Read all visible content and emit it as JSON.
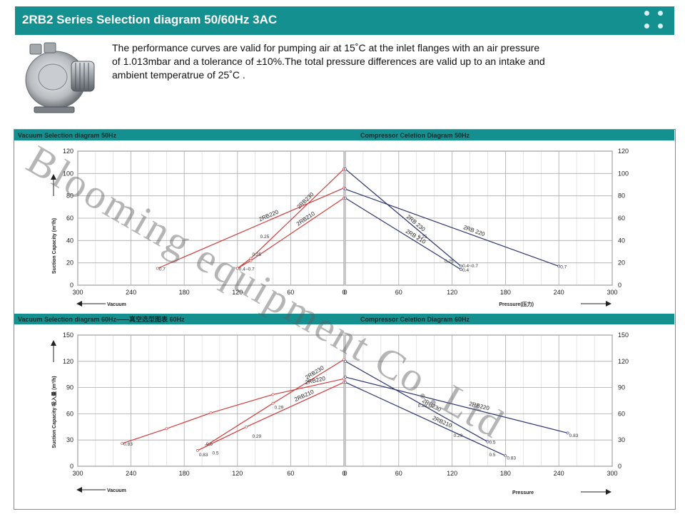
{
  "header": {
    "title": "2RB2 Series Selection diagram 50/60Hz 3AC"
  },
  "intro": {
    "line1": "The performance curves are valid for pumping air at 15˚C at the inlet flanges with an air pressure",
    "line2": "of 1.013mbar and a tolerance of ±10%.The total pressure differences are valid up to an intake and",
    "line3": "ambient temperatrue of 25˚C ."
  },
  "watermark": "Blooming equipment Co.,Ltd",
  "colors": {
    "teal": "#159090",
    "red": "#d23c3c",
    "navy": "#2c3470"
  },
  "chart_data": [
    {
      "type": "line",
      "title": "Vacuum Selection diagram 50Hz",
      "xlabel": "Vacuum",
      "ylabel": "Suction Capacity  (m³/h)",
      "xlim": [
        300,
        0
      ],
      "ylim": [
        0,
        120
      ],
      "xticks": [
        300,
        240,
        180,
        120,
        60,
        0
      ],
      "yticks": [
        0,
        20,
        40,
        60,
        80,
        100,
        120
      ],
      "series": [
        {
          "name": "2RB230",
          "x": [
            120,
            105,
            0
          ],
          "y": [
            15,
            24,
            104
          ]
        },
        {
          "name": "2RB220",
          "x": [
            210,
            0
          ],
          "y": [
            15,
            87
          ]
        },
        {
          "name": "2RB210",
          "x": [
            120,
            105,
            0
          ],
          "y": [
            15,
            22,
            78
          ]
        }
      ],
      "annotations": [
        {
          "text": "0.7",
          "x": 210,
          "y": 15
        },
        {
          "text": "0.4~0.7",
          "x": 120,
          "y": 15
        },
        {
          "text": "0.25",
          "x": 105,
          "y": 28
        },
        {
          "text": "0.25",
          "x": 96,
          "y": 44
        }
      ]
    },
    {
      "type": "line",
      "title": "Compressor Celetion Diagram 50Hz",
      "xlabel": "Pressure(压力)",
      "ylabel": "",
      "xlim": [
        0,
        300
      ],
      "ylim": [
        0,
        120
      ],
      "xticks": [
        0,
        60,
        120,
        180,
        240,
        300
      ],
      "yticks": [
        0,
        20,
        40,
        60,
        80,
        100,
        120
      ],
      "series": [
        {
          "name": "2RB 230",
          "x": [
            0,
            130
          ],
          "y": [
            104,
            17
          ]
        },
        {
          "name": "2RB 210",
          "x": [
            0,
            130
          ],
          "y": [
            78,
            14
          ]
        },
        {
          "name": "2RB 220",
          "x": [
            0,
            240
          ],
          "y": [
            86,
            17
          ]
        }
      ],
      "annotations": [
        {
          "text": "0.25",
          "x": 80,
          "y": 44
        },
        {
          "text": "0.25",
          "x": 110,
          "y": 22
        },
        {
          "text": "0.4~0.7",
          "x": 130,
          "y": 18
        },
        {
          "text": "0.4",
          "x": 130,
          "y": 14
        },
        {
          "text": "0.7",
          "x": 240,
          "y": 17
        }
      ]
    },
    {
      "type": "line",
      "title": "Vacuum Selection diagram 60Hz——真空选型图表 60Hz",
      "xlabel": "Vacuum",
      "ylabel": "Suction Capacity 吸入量  (m³/h)",
      "xlim": [
        300,
        0
      ],
      "ylim": [
        0,
        150
      ],
      "xticks": [
        300,
        240,
        180,
        120,
        60,
        0
      ],
      "yticks": [
        0,
        30,
        60,
        90,
        120,
        150
      ],
      "series": [
        {
          "name": "2RB230",
          "x": [
            155,
            80,
            0
          ],
          "y": [
            24,
            72,
            122
          ]
        },
        {
          "name": "2RB220",
          "x": [
            250,
            200,
            150,
            80,
            0
          ],
          "y": [
            26,
            43,
            61,
            82,
            100
          ]
        },
        {
          "name": "2RB210",
          "x": [
            165,
            110,
            0
          ],
          "y": [
            18,
            45,
            96
          ]
        }
      ],
      "annotations": [
        {
          "text": "0.83",
          "x": 250,
          "y": 26
        },
        {
          "text": "0.83",
          "x": 165,
          "y": 14
        },
        {
          "text": "0.5",
          "x": 157,
          "y": 26
        },
        {
          "text": "0.5",
          "x": 150,
          "y": 16
        },
        {
          "text": "0.29",
          "x": 105,
          "y": 35
        },
        {
          "text": "0.29",
          "x": 80,
          "y": 68
        }
      ]
    },
    {
      "type": "line",
      "title": "Compressor Celetion Diagram 60Hz",
      "xlabel": "Pressure",
      "ylabel": "",
      "xlim": [
        0,
        300
      ],
      "ylim": [
        0,
        150
      ],
      "xticks": [
        0,
        60,
        120,
        180,
        240,
        300
      ],
      "yticks": [
        0,
        30,
        60,
        90,
        120,
        150
      ],
      "series": [
        {
          "name": "2RB230",
          "x": [
            0,
            160
          ],
          "y": [
            120,
            28
          ]
        },
        {
          "name": "2RB220",
          "x": [
            0,
            250
          ],
          "y": [
            102,
            38
          ]
        },
        {
          "name": "2RB210",
          "x": [
            0,
            180
          ],
          "y": [
            96,
            12
          ]
        }
      ],
      "annotations": [
        {
          "text": "0.29",
          "x": 80,
          "y": 70
        },
        {
          "text": "0.29",
          "x": 120,
          "y": 36
        },
        {
          "text": "0.5",
          "x": 160,
          "y": 28
        },
        {
          "text": "0.5",
          "x": 160,
          "y": 14
        },
        {
          "text": "0.83",
          "x": 180,
          "y": 10
        },
        {
          "text": "0.83",
          "x": 250,
          "y": 36
        }
      ]
    }
  ]
}
